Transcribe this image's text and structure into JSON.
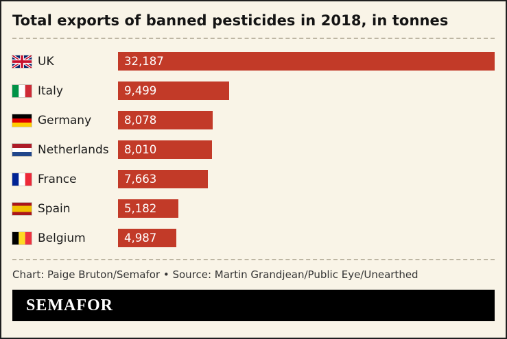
{
  "chart_data": {
    "type": "bar",
    "orientation": "horizontal",
    "title": "Total exports of banned pesticides in 2018, in tonnes",
    "categories": [
      "UK",
      "Italy",
      "Germany",
      "Netherlands",
      "France",
      "Spain",
      "Belgium"
    ],
    "values": [
      32187,
      9499,
      8078,
      8010,
      7663,
      5182,
      4987
    ],
    "value_labels": [
      "32,187",
      "9,499",
      "8,078",
      "8,010",
      "7,663",
      "5,182",
      "4,987"
    ],
    "flags": [
      "uk",
      "italy",
      "germany",
      "netherlands",
      "france",
      "spain",
      "belgium"
    ],
    "bar_color": "#c23a28",
    "xlim": [
      0,
      32187
    ],
    "xlabel": "",
    "ylabel": "",
    "grid": false,
    "legend": false
  },
  "footer": {
    "credit": "Chart: Paige Bruton/Semafor • Source: Martin Grandjean/Public Eye/Unearthed",
    "logo": "SEMAFOR"
  }
}
